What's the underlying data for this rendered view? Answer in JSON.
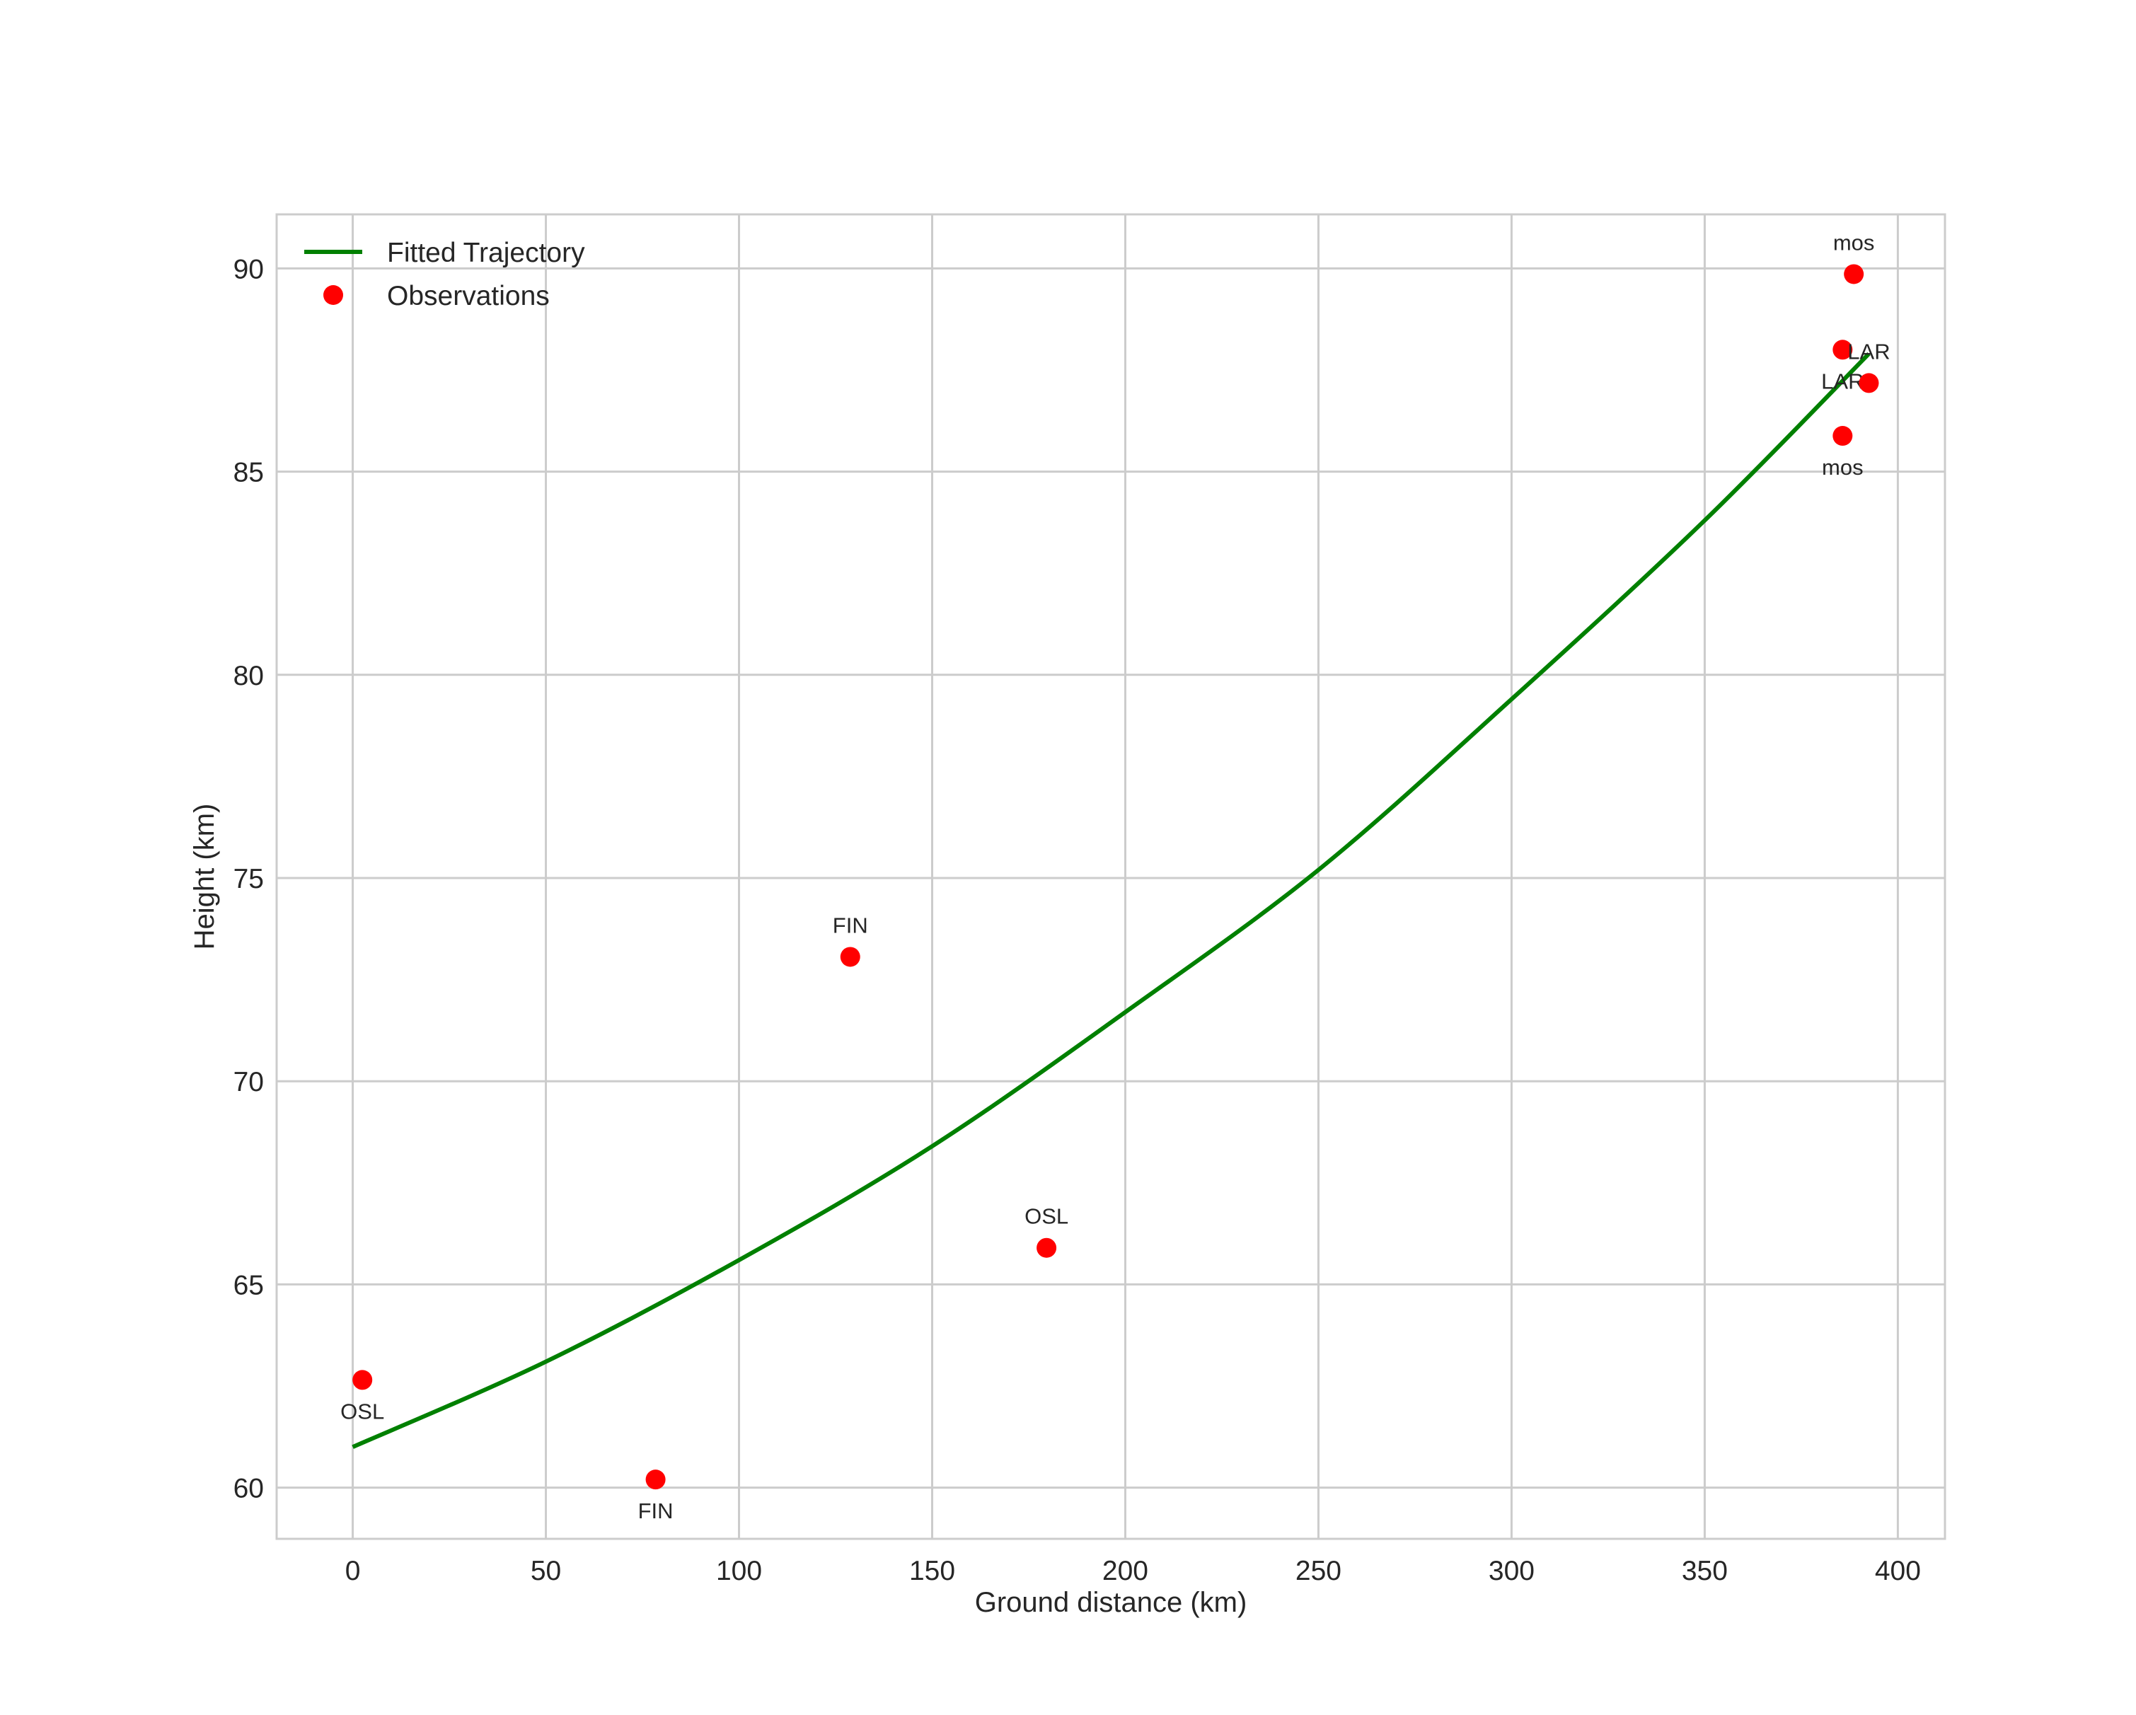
{
  "chart_data": {
    "type": "scatter",
    "title": "",
    "xlabel": "Ground distance (km)",
    "ylabel": "Height (km)",
    "xlim": [
      -19.7,
      412.2
    ],
    "ylim": [
      58.74,
      91.33
    ],
    "xticks": [
      0,
      50,
      100,
      150,
      200,
      250,
      300,
      350,
      400
    ],
    "yticks": [
      60,
      65,
      70,
      75,
      80,
      85,
      90
    ],
    "grid": true,
    "legend": {
      "placement": "top-left",
      "entries": [
        "Fitted Trajectory",
        "Observations"
      ]
    },
    "series": [
      {
        "name": "Fitted Trajectory",
        "type": "line",
        "color": "#008000",
        "x": [
          0,
          50,
          100,
          150,
          200,
          250,
          300,
          350,
          392.5
        ],
        "y": [
          61.0,
          63.1,
          65.6,
          68.4,
          71.7,
          75.2,
          79.4,
          83.8,
          87.9
        ]
      },
      {
        "name": "Observations",
        "type": "scatter",
        "color": "#ff0000",
        "points": [
          {
            "x": 2.5,
            "y": 62.65,
            "label": "OSL",
            "label_pos": "below"
          },
          {
            "x": 78.4,
            "y": 60.2,
            "label": "FIN",
            "label_pos": "below"
          },
          {
            "x": 128.8,
            "y": 73.06,
            "label": "FIN",
            "label_pos": "above"
          },
          {
            "x": 179.6,
            "y": 65.9,
            "label": "OSL",
            "label_pos": "above"
          },
          {
            "x": 388.6,
            "y": 89.86,
            "label": "mos",
            "label_pos": "above"
          },
          {
            "x": 385.7,
            "y": 88.0,
            "label": "LAR",
            "label_pos": "below"
          },
          {
            "x": 392.5,
            "y": 87.18,
            "label": "LAR",
            "label_pos": "above"
          },
          {
            "x": 385.7,
            "y": 85.88,
            "label": "mos",
            "label_pos": "below"
          }
        ]
      }
    ]
  }
}
